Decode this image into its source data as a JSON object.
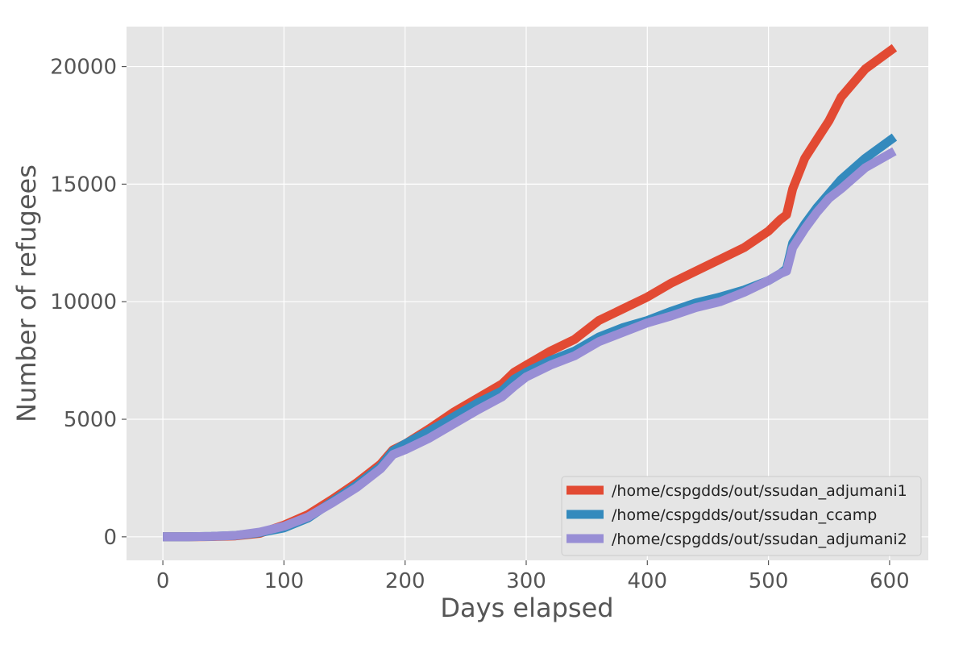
{
  "chart_data": {
    "type": "line",
    "title": "",
    "xlabel": "Days elapsed",
    "ylabel": "Number of refugees",
    "xlim": [
      -30,
      632
    ],
    "ylim": [
      -1000,
      21700
    ],
    "xticks": [
      0,
      100,
      200,
      300,
      400,
      500,
      600
    ],
    "yticks": [
      0,
      5000,
      10000,
      15000,
      20000
    ],
    "grid": true,
    "legend_position": "bottom-right",
    "series": [
      {
        "name": "/home/cspgdds/out/ssudan_adjumani1",
        "color": "#E24A33",
        "x": [
          0,
          20,
          40,
          60,
          80,
          100,
          120,
          140,
          160,
          180,
          190,
          200,
          220,
          240,
          260,
          280,
          290,
          300,
          320,
          340,
          360,
          380,
          400,
          420,
          440,
          460,
          480,
          500,
          510,
          515,
          520,
          530,
          540,
          550,
          560,
          580,
          604
        ],
        "y": [
          0,
          0,
          10,
          40,
          150,
          500,
          950,
          1600,
          2300,
          3100,
          3700,
          3950,
          4600,
          5300,
          5900,
          6500,
          7000,
          7300,
          7900,
          8400,
          9200,
          9700,
          10200,
          10800,
          11300,
          11800,
          12300,
          13000,
          13500,
          13700,
          14800,
          16100,
          16900,
          17700,
          18700,
          19900,
          20800
        ]
      },
      {
        "name": "/home/cspgdds/out/ssudan_ccamp",
        "color": "#348ABD",
        "x": [
          0,
          20,
          40,
          60,
          80,
          100,
          120,
          140,
          160,
          180,
          190,
          200,
          220,
          240,
          260,
          280,
          290,
          300,
          320,
          340,
          360,
          380,
          400,
          420,
          440,
          460,
          480,
          500,
          510,
          515,
          520,
          530,
          540,
          550,
          560,
          580,
          604
        ],
        "y": [
          0,
          0,
          20,
          60,
          180,
          380,
          800,
          1500,
          2200,
          3000,
          3650,
          3950,
          4500,
          5100,
          5700,
          6200,
          6700,
          7000,
          7500,
          7900,
          8500,
          8900,
          9200,
          9600,
          9950,
          10200,
          10500,
          10900,
          11200,
          11400,
          12500,
          13300,
          14000,
          14600,
          15200,
          16100,
          17000
        ]
      },
      {
        "name": "/home/cspgdds/out/ssudan_adjumani2",
        "color": "#988ED5",
        "x": [
          0,
          20,
          40,
          60,
          80,
          100,
          120,
          140,
          160,
          180,
          190,
          200,
          220,
          240,
          260,
          280,
          290,
          300,
          320,
          340,
          360,
          380,
          400,
          420,
          440,
          460,
          480,
          500,
          510,
          515,
          520,
          530,
          540,
          550,
          560,
          580,
          604
        ],
        "y": [
          0,
          0,
          20,
          60,
          200,
          450,
          850,
          1450,
          2100,
          2900,
          3500,
          3700,
          4200,
          4800,
          5400,
          5950,
          6400,
          6800,
          7300,
          7700,
          8300,
          8700,
          9100,
          9400,
          9750,
          10000,
          10400,
          10900,
          11200,
          11300,
          12300,
          13100,
          13800,
          14400,
          14800,
          15700,
          16400
        ]
      }
    ]
  }
}
